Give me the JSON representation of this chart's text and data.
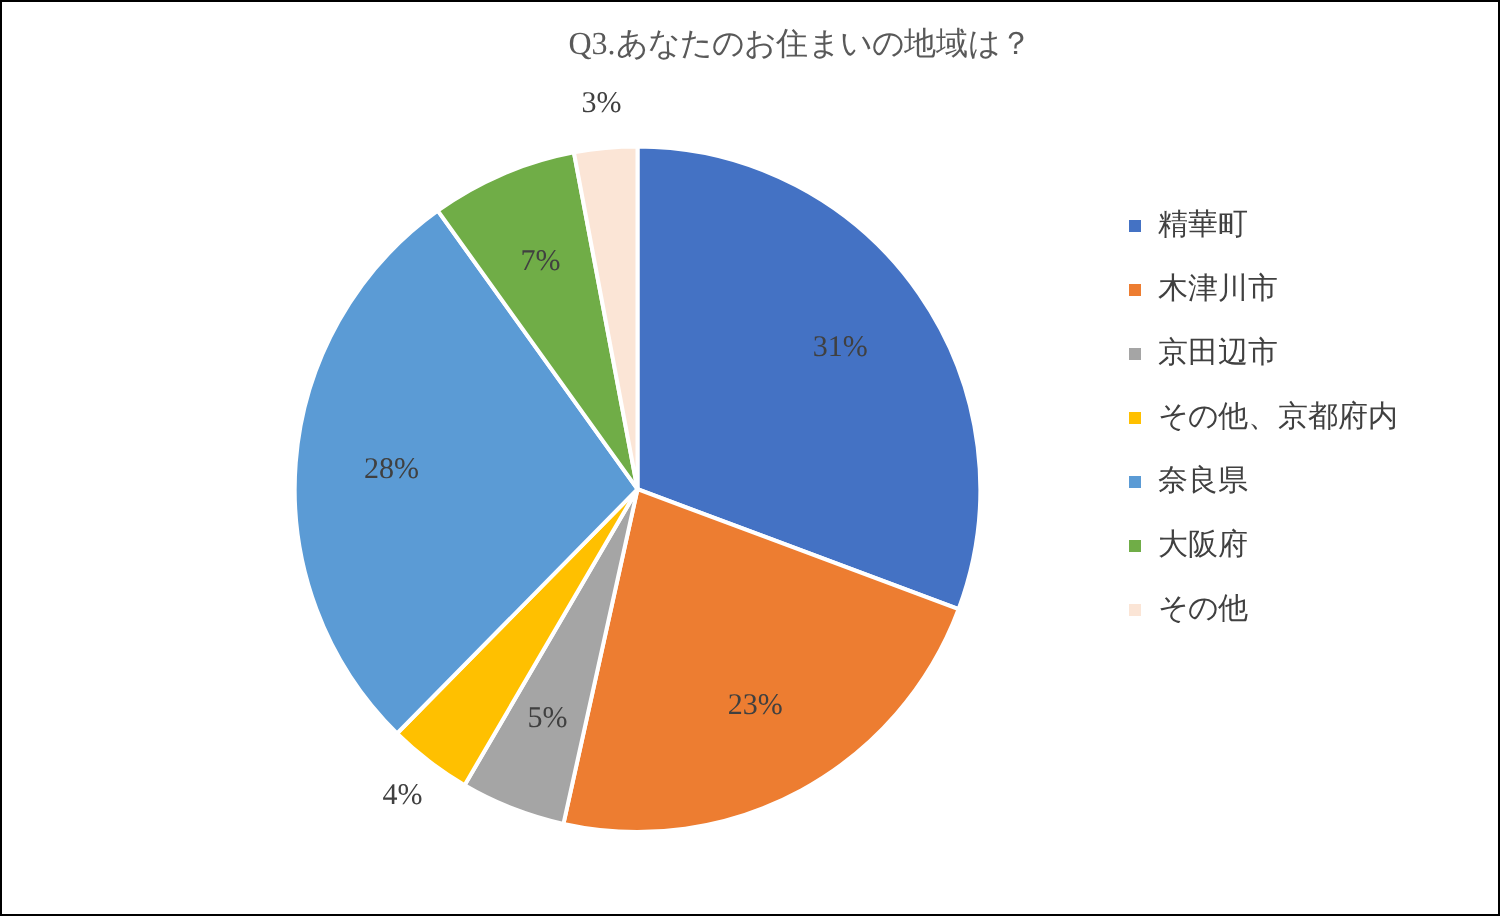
{
  "chart_data": {
    "type": "pie",
    "title": "Q3.あなたのお住まいの地域は？",
    "categories": [
      "精華町",
      "木津川市",
      "京田辺市",
      "その他、京都府内",
      "奈良県",
      "大阪府",
      "その他"
    ],
    "values": [
      31,
      23,
      5,
      4,
      28,
      7,
      3
    ],
    "value_labels": [
      "31%",
      "23%",
      "5%",
      "4%",
      "28%",
      "7%",
      "3%"
    ],
    "colors": [
      "#4472c4",
      "#ed7d31",
      "#a5a5a5",
      "#ffc000",
      "#5b9bd5",
      "#70ad47",
      "#fbe5d6"
    ],
    "legend": "right"
  }
}
